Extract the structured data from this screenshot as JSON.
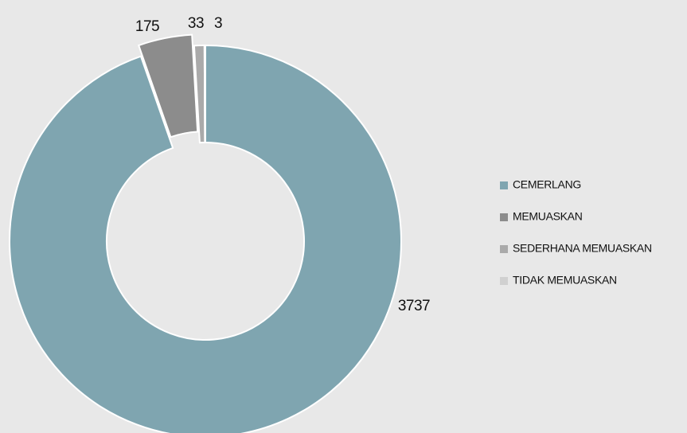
{
  "chart_data": {
    "type": "donut",
    "categories": [
      "CEMERLANG",
      "MEMUASKAN",
      "SEDERHANA MEMUASKAN",
      "TIDAK MEMUASKAN"
    ],
    "values": [
      3737,
      175,
      33,
      3
    ],
    "colors": [
      "#7fa5b0",
      "#8c8c8c",
      "#aaaaaa",
      "#d0d0d0"
    ]
  }
}
